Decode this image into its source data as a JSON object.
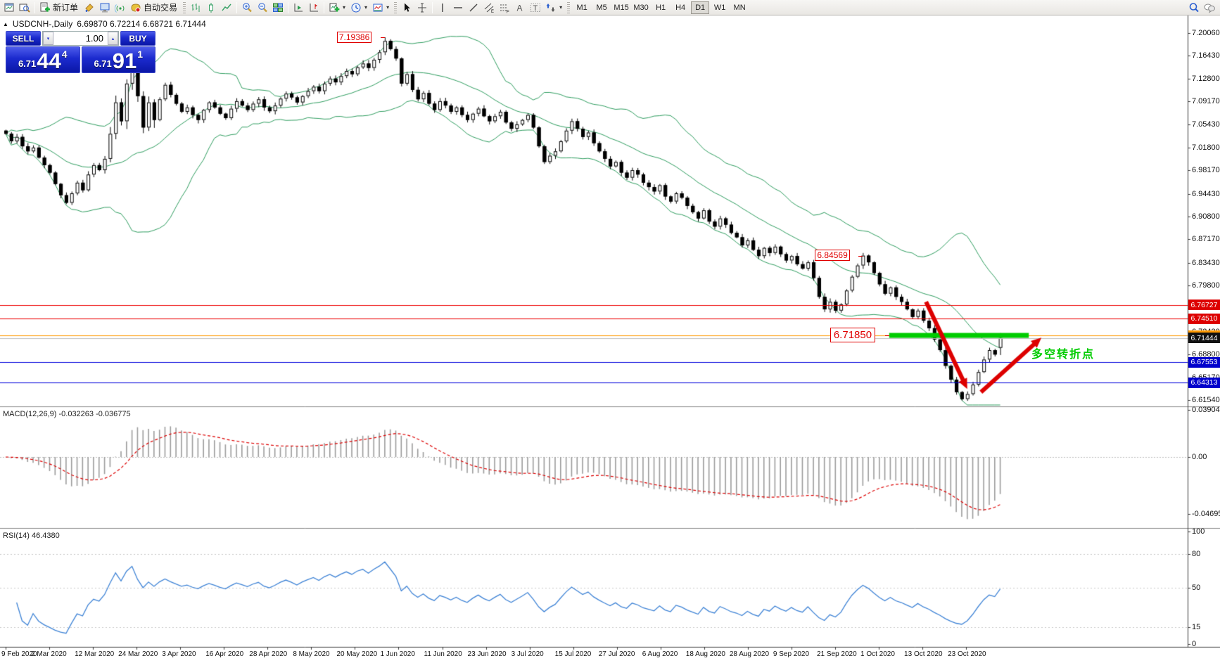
{
  "icons": {
    "caret_down": "▾",
    "caret_up": "▴",
    "triangle_up": "▲"
  },
  "toolbar": {
    "groups": [
      {
        "items": [
          {
            "icon": "chart-window"
          },
          {
            "icon": "magnifier-window"
          }
        ]
      },
      {
        "items": [
          {
            "icon": "new-order",
            "label": "新订单"
          },
          {
            "icon": "styler"
          },
          {
            "icon": "terminal"
          },
          {
            "icon": "signals"
          },
          {
            "icon": "autotrade",
            "label": "自动交易"
          }
        ]
      },
      {
        "handle": true,
        "items": [
          {
            "icon": "bar-chart"
          },
          {
            "icon": "candle-chart"
          },
          {
            "icon": "line-chart"
          }
        ]
      },
      {
        "items": [
          {
            "icon": "zoom-in"
          },
          {
            "icon": "zoom-out"
          },
          {
            "icon": "tile-windows"
          }
        ]
      },
      {
        "items": [
          {
            "icon": "auto-scroll"
          },
          {
            "icon": "chart-shift"
          }
        ]
      },
      {
        "items": [
          {
            "icon": "indicators",
            "caret": true
          },
          {
            "icon": "periods",
            "caret": true
          },
          {
            "icon": "templates",
            "caret": true
          }
        ]
      },
      {
        "handle": true,
        "items": [
          {
            "icon": "cursor"
          },
          {
            "icon": "crosshair"
          }
        ]
      },
      {
        "items": [
          {
            "icon": "vertical-line"
          },
          {
            "icon": "horizontal-line"
          },
          {
            "icon": "trendline"
          },
          {
            "icon": "equidistant-channel"
          },
          {
            "icon": "fibonacci"
          },
          {
            "icon": "text"
          },
          {
            "icon": "text-label"
          },
          {
            "icon": "arrows",
            "caret": true
          }
        ]
      },
      {
        "handle": true,
        "timeframes": [
          "M1",
          "M5",
          "M15",
          "M30",
          "H1",
          "H4",
          "D1",
          "W1",
          "MN"
        ],
        "active": "D1"
      }
    ],
    "right_items": [
      {
        "icon": "search"
      },
      {
        "icon": "chat"
      }
    ]
  },
  "chart": {
    "title_symbol": "USDCNH-,Daily",
    "title_ohlc": "6.69870 6.72214 6.68721 6.71444",
    "one_click": {
      "sell_label": "SELL",
      "buy_label": "BUY",
      "volume": "1.00",
      "sell_small": "6.71",
      "sell_big": "44",
      "sell_sup": "4",
      "buy_small": "6.71",
      "buy_big": "91",
      "buy_sup": "1",
      "panel_blue": "#1b2ace"
    },
    "price_axis": [
      "7.20060",
      "7.16430",
      "7.12800",
      "7.09170",
      "7.05430",
      "7.01800",
      "6.98170",
      "6.94430",
      "6.90800",
      "6.87170",
      "6.83430",
      "6.79800",
      "6.76170",
      "6.72430",
      "6.68800",
      "6.65170",
      "6.61540"
    ],
    "axis_boxes": [
      {
        "text": "6.76727",
        "bg": "#dd0000"
      },
      {
        "text": "6.74510",
        "bg": "#dd0000"
      },
      {
        "text": "6.71850",
        "bg": "#ff9900"
      },
      {
        "text": "6.71444",
        "bg": "#111111"
      },
      {
        "text": "6.67553",
        "bg": "#0000cc"
      },
      {
        "text": "6.64313",
        "bg": "#0000cc"
      }
    ],
    "hlines": [
      {
        "price": 6.76727,
        "color": "#ee0000"
      },
      {
        "price": 6.7451,
        "color": "#ee0000"
      },
      {
        "price": 6.7185,
        "color": "#ff9900"
      },
      {
        "price": 6.71444,
        "color": "#bdbdbd"
      },
      {
        "price": 6.67553,
        "color": "#0000dd"
      },
      {
        "price": 6.64313,
        "color": "#0000dd"
      }
    ],
    "price_labels": [
      {
        "text": "7.19386",
        "anchor_index": 69,
        "price": 7.19386,
        "large": false
      },
      {
        "text": "6.84569",
        "anchor_index": 156,
        "price": 6.84569,
        "large": false
      },
      {
        "text": "6.71850",
        "anchor_index": 160.8,
        "price": 6.7185,
        "large": true
      }
    ],
    "note": {
      "text": "多空转折点",
      "color": "#00cc00"
    },
    "support_bar": {
      "price": 6.7185,
      "i1": 160.8,
      "i2": 186.2,
      "color": "#00cc00"
    },
    "arrows": [
      {
        "i1": 167.5,
        "p1": 6.772,
        "i2": 175.0,
        "p2": 6.633
      },
      {
        "i1": 177.5,
        "p1": 6.628,
        "i2": 188.5,
        "p2": 6.715
      }
    ],
    "arrow_color": "#dd0000",
    "band_color": "#2f9e60",
    "bull_color": "#ffffff",
    "bear_color": "#000000"
  },
  "macd": {
    "label": "MACD(12,26,9)",
    "values": "-0.032263 -0.036775",
    "axis": [
      "0.039044",
      "0.00",
      "-0.046959"
    ],
    "histogram_color": "#9c9c9c",
    "signal_color": "#dd0000"
  },
  "rsi": {
    "label": "RSI(14)",
    "value": "46.4380",
    "axis": [
      "100",
      "80",
      "50",
      "15",
      "0"
    ],
    "levels": [
      80,
      50,
      15
    ],
    "line_color": "#3e83d6"
  },
  "dates": [
    "9 Feb 2020",
    "2 Mar 2020",
    "12 Mar 2020",
    "24 Mar 2020",
    "3 Apr 2020",
    "16 Apr 2020",
    "28 Apr 2020",
    "8 May 2020",
    "20 May 2020",
    "1 Jun 2020",
    "11 Jun 2020",
    "23 Jun 2020",
    "3 Jul 2020",
    "15 Jul 2020",
    "27 Jul 2020",
    "6 Aug 2020",
    "18 Aug 2020",
    "28 Aug 2020",
    "9 Sep 2020",
    "21 Sep 2020",
    "1 Oct 2020",
    "13 Oct 2020",
    "23 Oct 2020"
  ],
  "chart_data": {
    "type": "candlestick",
    "symbol": "USDCNH",
    "period": "Daily",
    "title": "USDCNH-,Daily",
    "ohlc_current": {
      "open": 6.6987,
      "high": 6.72214,
      "low": 6.68721,
      "close": 6.71444
    },
    "y_range": [
      6.6154,
      7.2006
    ],
    "high_annotation": 7.19386,
    "swing_annotation": 6.84569,
    "support_annotation": 6.7185,
    "indicators": {
      "bollinger_period": 20,
      "bollinger_dev": 2,
      "macd": [
        12,
        26,
        9
      ],
      "rsi_period": 14
    },
    "macd_axis_range": [
      -0.046959,
      0.039044
    ],
    "rsi_axis_range": [
      0,
      100
    ],
    "closes": [
      7.04,
      7.028,
      7.035,
      7.02,
      7.012,
      7.018,
      7.002,
      6.99,
      6.978,
      6.96,
      6.942,
      6.93,
      6.945,
      6.962,
      6.95,
      6.975,
      6.99,
      6.982,
      7.0,
      7.04,
      7.09,
      7.06,
      7.12,
      7.16,
      7.1,
      7.05,
      7.09,
      7.062,
      7.095,
      7.118,
      7.102,
      7.088,
      7.075,
      7.082,
      7.07,
      7.062,
      7.078,
      7.09,
      7.082,
      7.072,
      7.065,
      7.08,
      7.092,
      7.085,
      7.078,
      7.088,
      7.095,
      7.082,
      7.076,
      7.085,
      7.096,
      7.104,
      7.098,
      7.09,
      7.1,
      7.108,
      7.115,
      7.108,
      7.12,
      7.128,
      7.122,
      7.132,
      7.14,
      7.135,
      7.146,
      7.152,
      7.145,
      7.158,
      7.17,
      7.188,
      7.175,
      7.16,
      7.12,
      7.135,
      7.11,
      7.095,
      7.105,
      7.088,
      7.078,
      7.092,
      7.085,
      7.075,
      7.082,
      7.07,
      7.062,
      7.072,
      7.08,
      7.068,
      7.06,
      7.068,
      7.075,
      7.058,
      7.048,
      7.055,
      7.062,
      7.07,
      7.05,
      7.02,
      6.995,
      7.005,
      7.012,
      7.028,
      7.045,
      7.06,
      7.048,
      7.035,
      7.042,
      7.025,
      7.012,
      7.0,
      6.988,
      6.995,
      6.978,
      6.97,
      6.982,
      6.975,
      6.962,
      6.955,
      6.948,
      6.958,
      6.94,
      6.932,
      6.945,
      6.938,
      6.925,
      6.915,
      6.905,
      6.918,
      6.9,
      6.892,
      6.905,
      6.895,
      6.882,
      6.875,
      6.862,
      6.87,
      6.855,
      6.845,
      6.858,
      6.85,
      6.86,
      6.848,
      6.838,
      6.845,
      6.832,
      6.825,
      6.835,
      6.81,
      6.78,
      6.76,
      6.772,
      6.758,
      6.768,
      6.79,
      6.812,
      6.83,
      6.8457,
      6.835,
      6.818,
      6.8,
      6.785,
      6.795,
      6.78,
      6.772,
      6.76,
      6.748,
      6.758,
      6.742,
      6.73,
      6.712,
      6.695,
      6.67,
      6.648,
      6.628,
      6.617,
      6.625,
      6.64,
      6.66,
      6.68,
      6.695,
      6.688,
      6.7144
    ]
  }
}
